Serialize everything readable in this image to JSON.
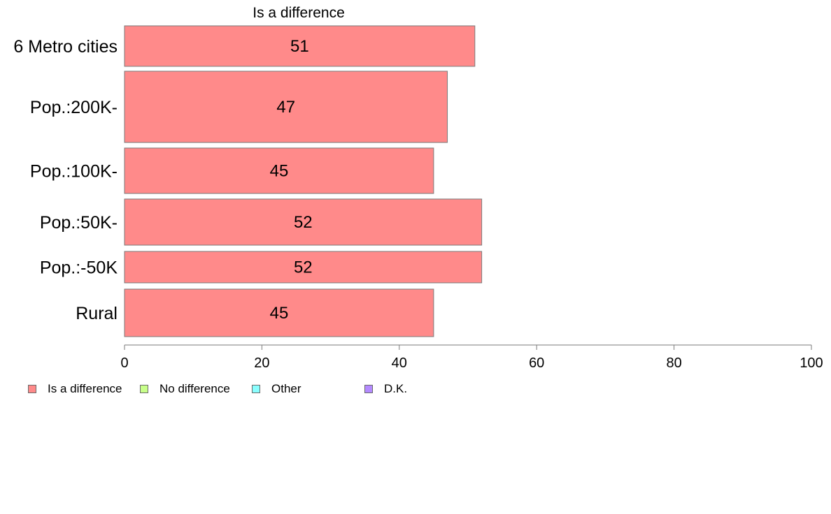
{
  "chart_data": {
    "type": "bar",
    "orientation": "horizontal",
    "title": "Is a difference",
    "categories": [
      "6 Metro cities",
      "Pop.:200K-",
      "Pop.:100K-",
      "Pop.:50K-",
      "Pop.:-50K",
      "Rural"
    ],
    "series": [
      {
        "name": "Is a difference",
        "values": [
          51,
          47,
          45,
          52,
          52,
          45
        ],
        "color": "#ff8a8a"
      }
    ],
    "data_labels": [
      "51",
      "47",
      "45",
      "52",
      "52",
      "45"
    ],
    "xlim": [
      0,
      100
    ],
    "xticks": [
      0,
      20,
      40,
      60,
      80,
      100
    ],
    "xtick_labels": [
      "0",
      "20",
      "40",
      "60",
      "80",
      "100"
    ],
    "xlabel": "",
    "ylabel": "",
    "grid": false,
    "legend_position": "bottom-left"
  },
  "legend": [
    {
      "label": "Is a difference",
      "color": "#ff8a8a"
    },
    {
      "label": "No difference",
      "color": "#c8ff8a"
    },
    {
      "label": "Other",
      "color": "#8affff"
    },
    {
      "label": "D.K.",
      "color": "#b48aff"
    }
  ]
}
